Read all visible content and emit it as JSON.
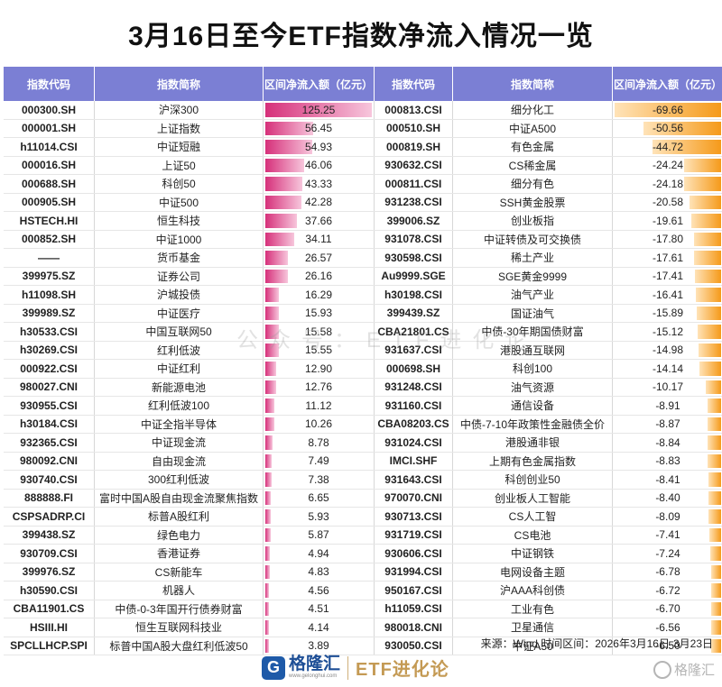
{
  "title": "3月16日至今ETF指数净流入情况一览",
  "headers": [
    "指数代码",
    "指数简称",
    "区间净流入额（亿元）",
    "指数代码",
    "指数简称",
    "区间净流入额（亿元）"
  ],
  "colors": {
    "header_bg": "#7b7fd4",
    "inflow_bar": "#d6307a",
    "outflow_bar": "#f59a1a"
  },
  "rows": [
    {
      "lc": "000300.SH",
      "ln": "沪深300",
      "lv": "125.25",
      "rc": "000813.CSI",
      "rn": "细分化工",
      "rv": "-69.66"
    },
    {
      "lc": "000001.SH",
      "ln": "上证指数",
      "lv": "56.45",
      "rc": "000510.SH",
      "rn": "中证A500",
      "rv": "-50.56"
    },
    {
      "lc": "h11014.CSI",
      "ln": "中证短融",
      "lv": "54.93",
      "rc": "000819.SH",
      "rn": "有色金属",
      "rv": "-44.72"
    },
    {
      "lc": "000016.SH",
      "ln": "上证50",
      "lv": "46.06",
      "rc": "930632.CSI",
      "rn": "CS稀金属",
      "rv": "-24.24"
    },
    {
      "lc": "000688.SH",
      "ln": "科创50",
      "lv": "43.33",
      "rc": "000811.CSI",
      "rn": "细分有色",
      "rv": "-24.18"
    },
    {
      "lc": "000905.SH",
      "ln": "中证500",
      "lv": "42.28",
      "rc": "931238.CSI",
      "rn": "SSH黄金股票",
      "rv": "-20.58"
    },
    {
      "lc": "HSTECH.HI",
      "ln": "恒生科技",
      "lv": "37.66",
      "rc": "399006.SZ",
      "rn": "创业板指",
      "rv": "-19.61"
    },
    {
      "lc": "000852.SH",
      "ln": "中证1000",
      "lv": "34.11",
      "rc": "931078.CSI",
      "rn": "中证转债及可交换债",
      "rv": "-17.80"
    },
    {
      "lc": "——",
      "ln": "货币基金",
      "lv": "26.57",
      "rc": "930598.CSI",
      "rn": "稀土产业",
      "rv": "-17.61"
    },
    {
      "lc": "399975.SZ",
      "ln": "证券公司",
      "lv": "26.16",
      "rc": "Au9999.SGE",
      "rn": "SGE黄金9999",
      "rv": "-17.41"
    },
    {
      "lc": "h11098.SH",
      "ln": "沪城投债",
      "lv": "16.29",
      "rc": "h30198.CSI",
      "rn": "油气产业",
      "rv": "-16.41"
    },
    {
      "lc": "399989.SZ",
      "ln": "中证医疗",
      "lv": "15.93",
      "rc": "399439.SZ",
      "rn": "国证油气",
      "rv": "-15.89"
    },
    {
      "lc": "h30533.CSI",
      "ln": "中国互联网50",
      "lv": "15.58",
      "rc": "CBA21801.CS",
      "rn": "中债-30年期国债财富",
      "rv": "-15.12"
    },
    {
      "lc": "h30269.CSI",
      "ln": "红利低波",
      "lv": "15.55",
      "rc": "931637.CSI",
      "rn": "港股通互联网",
      "rv": "-14.98"
    },
    {
      "lc": "000922.CSI",
      "ln": "中证红利",
      "lv": "12.90",
      "rc": "000698.SH",
      "rn": "科创100",
      "rv": "-14.14"
    },
    {
      "lc": "980027.CNI",
      "ln": "新能源电池",
      "lv": "12.76",
      "rc": "931248.CSI",
      "rn": "油气资源",
      "rv": "-10.17"
    },
    {
      "lc": "930955.CSI",
      "ln": "红利低波100",
      "lv": "11.12",
      "rc": "931160.CSI",
      "rn": "通信设备",
      "rv": "-8.91"
    },
    {
      "lc": "h30184.CSI",
      "ln": "中证全指半导体",
      "lv": "10.26",
      "rc": "CBA08203.CS",
      "rn": "中债-7-10年政策性金融债全价",
      "rv": "-8.87"
    },
    {
      "lc": "932365.CSI",
      "ln": "中证现金流",
      "lv": "8.78",
      "rc": "931024.CSI",
      "rn": "港股通非银",
      "rv": "-8.84"
    },
    {
      "lc": "980092.CNI",
      "ln": "自由现金流",
      "lv": "7.49",
      "rc": "IMCI.SHF",
      "rn": "上期有色金属指数",
      "rv": "-8.83"
    },
    {
      "lc": "930740.CSI",
      "ln": "300红利低波",
      "lv": "7.38",
      "rc": "931643.CSI",
      "rn": "科创创业50",
      "rv": "-8.41"
    },
    {
      "lc": "888888.FI",
      "ln": "富时中国A股自由现金流聚焦指数",
      "lv": "6.65",
      "rc": "970070.CNI",
      "rn": "创业板人工智能",
      "rv": "-8.40"
    },
    {
      "lc": "CSPSADRP.CI",
      "ln": "标普A股红利",
      "lv": "5.93",
      "rc": "930713.CSI",
      "rn": "CS人工智",
      "rv": "-8.09"
    },
    {
      "lc": "399438.SZ",
      "ln": "绿色电力",
      "lv": "5.87",
      "rc": "931719.CSI",
      "rn": "CS电池",
      "rv": "-7.41"
    },
    {
      "lc": "930709.CSI",
      "ln": "香港证券",
      "lv": "4.94",
      "rc": "930606.CSI",
      "rn": "中证钢铁",
      "rv": "-7.24"
    },
    {
      "lc": "399976.SZ",
      "ln": "CS新能车",
      "lv": "4.83",
      "rc": "931994.CSI",
      "rn": "电网设备主题",
      "rv": "-6.78"
    },
    {
      "lc": "h30590.CSI",
      "ln": "机器人",
      "lv": "4.56",
      "rc": "950167.CSI",
      "rn": "沪AAA科创债",
      "rv": "-6.72"
    },
    {
      "lc": "CBA11901.CS",
      "ln": "中债-0-3年国开行债券财富",
      "lv": "4.51",
      "rc": "h11059.CSI",
      "rn": "工业有色",
      "rv": "-6.70"
    },
    {
      "lc": "HSIII.HI",
      "ln": "恒生互联网科技业",
      "lv": "4.14",
      "rc": "980018.CNI",
      "rn": "卫星通信",
      "rv": "-6.56"
    },
    {
      "lc": "SPCLLHCP.SPI",
      "ln": "标普中国A股大盘红利低波50",
      "lv": "3.89",
      "rc": "930050.CSI",
      "rn": "中证A50",
      "rv": "-6.50"
    }
  ],
  "watermark": "公众号：ETF进化论",
  "source": "来源：Wind,时间区间：2026年3月16日-3月23日",
  "footer": {
    "logo_icon": "G",
    "logo_name": "格隆汇",
    "logo_url": "www.gelonghui.com",
    "etf_brand": "ETF进化论",
    "corner_text": "格隆汇",
    "icons": [
      "gelonghui-logo-icon",
      "gelonghui-ring-icon"
    ]
  }
}
